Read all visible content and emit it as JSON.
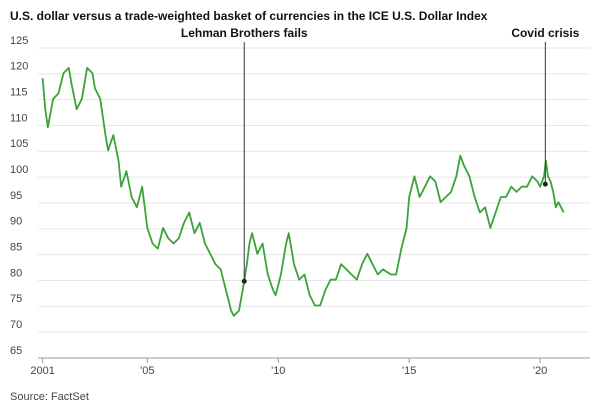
{
  "chart_data": {
    "type": "line",
    "title": "U.S. dollar versus a trade-weighted basket of currencies in the ICE U.S. Dollar Index",
    "source": "Source: FactSet",
    "x": [
      2001.0,
      2001.1,
      2001.2,
      2001.4,
      2001.6,
      2001.8,
      2002.0,
      2002.1,
      2002.3,
      2002.5,
      2002.7,
      2002.9,
      2003.0,
      2003.2,
      2003.4,
      2003.5,
      2003.7,
      2003.9,
      2004.0,
      2004.2,
      2004.4,
      2004.6,
      2004.8,
      2005.0,
      2005.2,
      2005.4,
      2005.6,
      2005.8,
      2006.0,
      2006.2,
      2006.4,
      2006.6,
      2006.8,
      2007.0,
      2007.2,
      2007.4,
      2007.6,
      2007.8,
      2008.0,
      2008.2,
      2008.3,
      2008.5,
      2008.7,
      2008.8,
      2008.9,
      2009.0,
      2009.2,
      2009.4,
      2009.6,
      2009.8,
      2009.9,
      2010.1,
      2010.3,
      2010.4,
      2010.6,
      2010.8,
      2011.0,
      2011.2,
      2011.4,
      2011.6,
      2011.8,
      2012.0,
      2012.2,
      2012.4,
      2012.6,
      2012.8,
      2013.0,
      2013.2,
      2013.4,
      2013.6,
      2013.8,
      2014.0,
      2014.3,
      2014.5,
      2014.7,
      2014.9,
      2015.0,
      2015.2,
      2015.4,
      2015.6,
      2015.8,
      2016.0,
      2016.2,
      2016.4,
      2016.6,
      2016.8,
      2016.95,
      2017.1,
      2017.3,
      2017.5,
      2017.7,
      2017.9,
      2018.1,
      2018.3,
      2018.5,
      2018.7,
      2018.9,
      2019.1,
      2019.3,
      2019.5,
      2019.7,
      2019.9,
      2020.0,
      2020.15,
      2020.22,
      2020.3,
      2020.4,
      2020.5,
      2020.6,
      2020.7,
      2020.8,
      2020.9
    ],
    "series": [
      {
        "name": "ICE U.S. Dollar Index",
        "color": "#3aa33a",
        "values": [
          118,
          112,
          108.5,
          114,
          115,
          119,
          120,
          117,
          112,
          114,
          120,
          119,
          116,
          114,
          107,
          104,
          107,
          102,
          97,
          100,
          95,
          93,
          97,
          89,
          86,
          85,
          89,
          87,
          86,
          87,
          90,
          92,
          88,
          90,
          86,
          84,
          82,
          81,
          77,
          73,
          72,
          73,
          78.7,
          82,
          86,
          88,
          84,
          86,
          80,
          77,
          76,
          80,
          86,
          88,
          82,
          79,
          80,
          76,
          74,
          74,
          77,
          79,
          79,
          82,
          81,
          80,
          79,
          82,
          84,
          82,
          80,
          81,
          80,
          80,
          85,
          89,
          95,
          99,
          95,
          97,
          99,
          98,
          94,
          95,
          96,
          99,
          103,
          101,
          99,
          95,
          92,
          93,
          89,
          92,
          95,
          95,
          97,
          96,
          97,
          97,
          99,
          98,
          97,
          99,
          102,
          99,
          98,
          96,
          93,
          94,
          93,
          92
        ]
      }
    ],
    "xlim": [
      2000.9,
      2021.6
    ],
    "xticks": [
      2001,
      {
        "value": 2005,
        "label": "'05"
      },
      {
        "value": 2010,
        "label": "'10"
      },
      {
        "value": 2015,
        "label": "'15"
      },
      {
        "value": 2020,
        "label": "'20"
      }
    ],
    "ylim": [
      65,
      125
    ],
    "yticks": [
      65,
      70,
      75,
      80,
      85,
      90,
      95,
      100,
      105,
      110,
      115,
      120,
      125
    ],
    "grid": true,
    "annotations": [
      {
        "label": "Lehman Brothers fails",
        "x": 2008.7,
        "y": 78.7
      },
      {
        "label": "Covid crisis",
        "x": 2020.2,
        "y": 97.5
      }
    ]
  }
}
